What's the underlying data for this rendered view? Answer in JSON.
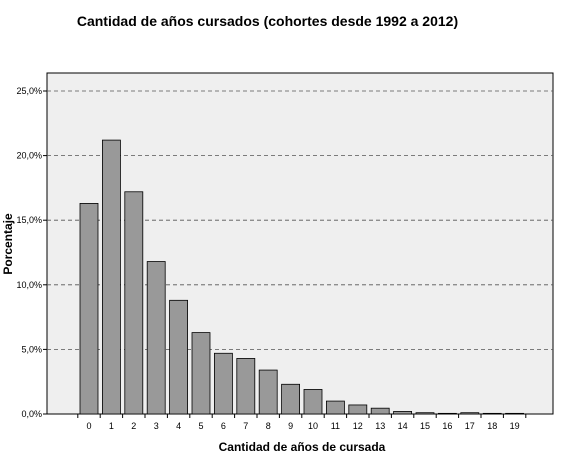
{
  "chart_data": {
    "type": "bar",
    "title": "Cantidad de años cursados (cohortes desde 1992 a 2012)",
    "xlabel": "Cantidad de años de cursada",
    "ylabel": "Porcentaje",
    "categories": [
      "0",
      "1",
      "2",
      "3",
      "4",
      "5",
      "6",
      "7",
      "8",
      "9",
      "10",
      "11",
      "12",
      "13",
      "14",
      "15",
      "16",
      "17",
      "18",
      "19"
    ],
    "values": [
      16.3,
      21.2,
      17.2,
      11.8,
      8.8,
      6.3,
      4.7,
      4.3,
      3.4,
      2.3,
      1.9,
      1.0,
      0.7,
      0.45,
      0.2,
      0.1,
      0.05,
      0.1,
      0.05,
      0.05
    ],
    "ylim": [
      0,
      26
    ],
    "yticks": [
      0,
      5,
      10,
      15,
      20,
      25
    ],
    "ytick_labels": [
      "0,0%",
      "5,0%",
      "10,0%",
      "15,0%",
      "20,0%",
      "25,0%"
    ],
    "grid": true,
    "colors": {
      "plot_background": "#efefef",
      "bar_fill": "#999999",
      "bar_stroke": "#000000",
      "grid": "#555555"
    }
  }
}
